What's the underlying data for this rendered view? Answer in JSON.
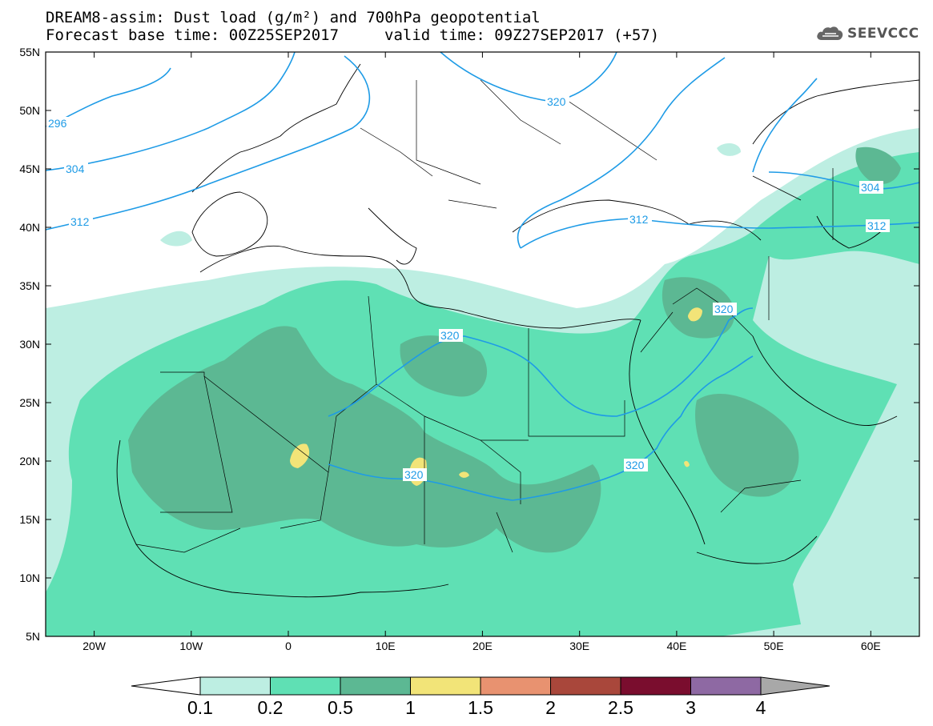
{
  "header": {
    "line1": "DREAM8-assim: Dust load (g/m²) and 700hPa geopotential",
    "line2_left": "Forecast base time: 00Z25SEP2017",
    "line2_right": "valid time: 09Z27SEP2017 (+57)",
    "logo_text": "SEEVCCC",
    "logo_icon": "cloud-icon"
  },
  "map": {
    "lon_range": [
      -25,
      65
    ],
    "lat_range": [
      5,
      55
    ],
    "lon_ticks": [
      "20W",
      "10W",
      "0",
      "10E",
      "20E",
      "30E",
      "40E",
      "50E",
      "60E"
    ],
    "lat_ticks": [
      "55N",
      "50N",
      "45N",
      "40N",
      "35N",
      "30N",
      "25N",
      "20N",
      "15N",
      "10N",
      "5N"
    ],
    "contour_color": "#1e9be6",
    "contour_labels": [
      "296",
      "304",
      "312",
      "320",
      "320",
      "320",
      "320",
      "320",
      "304",
      "312",
      "312"
    ]
  },
  "colorbar": {
    "levels": [
      "0.1",
      "0.2",
      "0.5",
      "1",
      "1.5",
      "2",
      "2.5",
      "3",
      "4"
    ],
    "colors": [
      "#bdeee2",
      "#5fe0b4",
      "#5cb893",
      "#f2e478",
      "#e89270",
      "#a9473b",
      "#7a0d2e",
      "#8e69a3"
    ],
    "under_color": "#ffffff",
    "over_color": "#a8a8a8"
  }
}
